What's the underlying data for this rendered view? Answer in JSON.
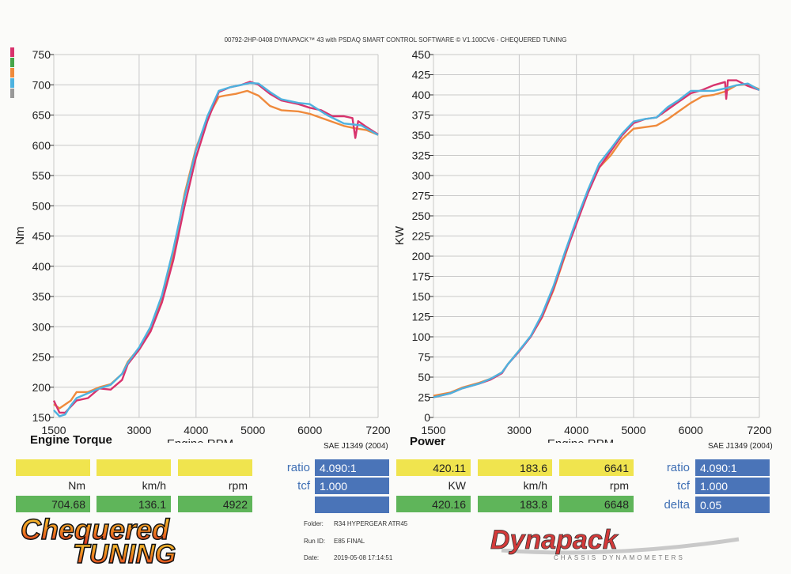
{
  "header": "00792-2HP-0408 DYNAPACK™ 43 with PSDAQ SMART CONTROL SOFTWARE © V1.100CV6 - CHEQUERED TUNING",
  "colors": {
    "pink": "#d8336d",
    "orange": "#ef8a3c",
    "blue": "#4eb2df",
    "green": "#46a54a",
    "grey": "#999999",
    "yellow_box": "#f0e44e",
    "green_box": "#5fb55a",
    "blue_box": "#4a74b8",
    "grid": "#c8c8c8"
  },
  "legend_swatches": [
    "#d8336d",
    "#46a54a",
    "#ef8a3c",
    "#4eb2df",
    "#999999"
  ],
  "chart_data": [
    {
      "type": "line",
      "title": "Engine Torque",
      "xlabel": "Engine RPM",
      "ylabel": "Nm",
      "standard": "SAE J1349 (2004)",
      "xlim": [
        1500,
        7200
      ],
      "ylim": [
        150,
        750
      ],
      "x_ticks": [
        1500,
        3000,
        4000,
        5000,
        6000,
        7200
      ],
      "y_ticks": [
        150,
        200,
        250,
        300,
        350,
        400,
        450,
        500,
        550,
        600,
        650,
        700,
        750
      ],
      "grid": true,
      "series": [
        {
          "color": "#ef8a3c",
          "points": [
            [
              1500,
              172
            ],
            [
              1600,
              165
            ],
            [
              1800,
              178
            ],
            [
              1900,
              192
            ],
            [
              2100,
              192
            ],
            [
              2300,
              200
            ],
            [
              2500,
              205
            ],
            [
              2700,
              222
            ],
            [
              2800,
              242
            ],
            [
              3000,
              265
            ],
            [
              3200,
              295
            ],
            [
              3400,
              345
            ],
            [
              3600,
              420
            ],
            [
              3800,
              520
            ],
            [
              4000,
              595
            ],
            [
              4200,
              645
            ],
            [
              4400,
              680
            ],
            [
              4500,
              682
            ],
            [
              4700,
              685
            ],
            [
              4900,
              690
            ],
            [
              5100,
              682
            ],
            [
              5300,
              665
            ],
            [
              5500,
              658
            ],
            [
              5800,
              656
            ],
            [
              6000,
              652
            ],
            [
              6300,
              642
            ],
            [
              6600,
              632
            ],
            [
              6800,
              628
            ],
            [
              7000,
              625
            ],
            [
              7200,
              617
            ]
          ]
        },
        {
          "color": "#d8336d",
          "points": [
            [
              1500,
              178
            ],
            [
              1600,
              158
            ],
            [
              1700,
              158
            ],
            [
              1800,
              168
            ],
            [
              1900,
              178
            ],
            [
              2100,
              182
            ],
            [
              2300,
              198
            ],
            [
              2500,
              196
            ],
            [
              2700,
              212
            ],
            [
              2800,
              238
            ],
            [
              3000,
              262
            ],
            [
              3200,
              292
            ],
            [
              3400,
              340
            ],
            [
              3600,
              410
            ],
            [
              3800,
              500
            ],
            [
              4000,
              580
            ],
            [
              4200,
              640
            ],
            [
              4400,
              688
            ],
            [
              4600,
              696
            ],
            [
              4800,
              700
            ],
            [
              4950,
              705
            ],
            [
              5100,
              700
            ],
            [
              5300,
              685
            ],
            [
              5500,
              674
            ],
            [
              5800,
              668
            ],
            [
              6000,
              662
            ],
            [
              6200,
              658
            ],
            [
              6400,
              648
            ],
            [
              6600,
              648
            ],
            [
              6750,
              645
            ],
            [
              6800,
              612
            ],
            [
              6850,
              640
            ],
            [
              7000,
              630
            ],
            [
              7200,
              618
            ]
          ]
        },
        {
          "color": "#4eb2df",
          "points": [
            [
              1500,
              162
            ],
            [
              1600,
              152
            ],
            [
              1700,
              155
            ],
            [
              1800,
              170
            ],
            [
              1900,
              182
            ],
            [
              2100,
              190
            ],
            [
              2300,
              198
            ],
            [
              2500,
              204
            ],
            [
              2700,
              222
            ],
            [
              2800,
              240
            ],
            [
              3000,
              266
            ],
            [
              3200,
              300
            ],
            [
              3400,
              352
            ],
            [
              3600,
              428
            ],
            [
              3800,
              515
            ],
            [
              4000,
              592
            ],
            [
              4200,
              648
            ],
            [
              4400,
              690
            ],
            [
              4600,
              696
            ],
            [
              4800,
              700
            ],
            [
              4950,
              703
            ],
            [
              5100,
              702
            ],
            [
              5300,
              688
            ],
            [
              5500,
              676
            ],
            [
              5800,
              670
            ],
            [
              6000,
              668
            ],
            [
              6300,
              650
            ],
            [
              6600,
              636
            ],
            [
              6900,
              633
            ],
            [
              7200,
              617
            ]
          ]
        }
      ]
    },
    {
      "type": "line",
      "title": "Power",
      "xlabel": "Engine RPM",
      "ylabel": "KW",
      "standard": "SAE J1349 (2004)",
      "xlim": [
        1500,
        7200
      ],
      "ylim": [
        0,
        450
      ],
      "x_ticks": [
        1500,
        3000,
        4000,
        5000,
        6000,
        7200
      ],
      "y_ticks": [
        0,
        25,
        50,
        75,
        100,
        125,
        150,
        175,
        200,
        225,
        250,
        275,
        300,
        325,
        350,
        375,
        400,
        425,
        450
      ],
      "grid": true,
      "series": [
        {
          "color": "#ef8a3c",
          "points": [
            [
              1500,
              27
            ],
            [
              1800,
              31
            ],
            [
              2000,
              37
            ],
            [
              2300,
              43
            ],
            [
              2500,
              48
            ],
            [
              2700,
              56
            ],
            [
              2800,
              66
            ],
            [
              3000,
              83
            ],
            [
              3200,
              100
            ],
            [
              3400,
              124
            ],
            [
              3600,
              158
            ],
            [
              3800,
              200
            ],
            [
              4000,
              243
            ],
            [
              4200,
              280
            ],
            [
              4400,
              310
            ],
            [
              4600,
              325
            ],
            [
              4800,
              345
            ],
            [
              5000,
              358
            ],
            [
              5200,
              360
            ],
            [
              5400,
              362
            ],
            [
              5600,
              370
            ],
            [
              5800,
              380
            ],
            [
              6000,
              390
            ],
            [
              6200,
              398
            ],
            [
              6400,
              400
            ],
            [
              6600,
              404
            ],
            [
              6800,
              412
            ],
            [
              7000,
              413
            ],
            [
              7200,
              407
            ]
          ]
        },
        {
          "color": "#d8336d",
          "points": [
            [
              1500,
              25
            ],
            [
              1800,
              30
            ],
            [
              2000,
              36
            ],
            [
              2300,
              42
            ],
            [
              2500,
              47
            ],
            [
              2700,
              55
            ],
            [
              2800,
              66
            ],
            [
              3000,
              82
            ],
            [
              3200,
              100
            ],
            [
              3400,
              125
            ],
            [
              3600,
              160
            ],
            [
              3800,
              202
            ],
            [
              4000,
              240
            ],
            [
              4200,
              278
            ],
            [
              4400,
              310
            ],
            [
              4600,
              330
            ],
            [
              4800,
              350
            ],
            [
              5000,
              365
            ],
            [
              5200,
              370
            ],
            [
              5400,
              372
            ],
            [
              5600,
              382
            ],
            [
              5800,
              392
            ],
            [
              6000,
              402
            ],
            [
              6200,
              406
            ],
            [
              6400,
              412
            ],
            [
              6600,
              416
            ],
            [
              6620,
              395
            ],
            [
              6650,
              418
            ],
            [
              6800,
              418
            ],
            [
              7000,
              411
            ],
            [
              7200,
              406
            ]
          ]
        },
        {
          "color": "#4eb2df",
          "points": [
            [
              1500,
              25
            ],
            [
              1800,
              30
            ],
            [
              2000,
              36
            ],
            [
              2300,
              42
            ],
            [
              2500,
              48
            ],
            [
              2700,
              56
            ],
            [
              2800,
              66
            ],
            [
              3000,
              83
            ],
            [
              3200,
              101
            ],
            [
              3400,
              128
            ],
            [
              3600,
              163
            ],
            [
              3800,
              205
            ],
            [
              4000,
              245
            ],
            [
              4200,
              282
            ],
            [
              4400,
              315
            ],
            [
              4600,
              333
            ],
            [
              4800,
              352
            ],
            [
              5000,
              367
            ],
            [
              5200,
              370
            ],
            [
              5400,
              372
            ],
            [
              5600,
              385
            ],
            [
              5800,
              394
            ],
            [
              6000,
              405
            ],
            [
              6200,
              405
            ],
            [
              6400,
              405
            ],
            [
              6600,
              408
            ],
            [
              6800,
              412
            ],
            [
              7000,
              414
            ],
            [
              7200,
              406
            ]
          ]
        }
      ]
    }
  ],
  "readouts": {
    "torque": {
      "yellow": [
        "",
        "",
        ""
      ],
      "units": [
        "Nm",
        "km/h",
        "rpm"
      ],
      "green": [
        "704.68",
        "136.1",
        "4922"
      ],
      "params": [
        {
          "label": "ratio",
          "value": "4.090:1"
        },
        {
          "label": "tcf",
          "value": "1.000"
        },
        {
          "label": "",
          "value": ""
        }
      ]
    },
    "power": {
      "yellow": [
        "420.11",
        "183.6",
        "6641"
      ],
      "units": [
        "KW",
        "km/h",
        "rpm"
      ],
      "green": [
        "420.16",
        "183.8",
        "6648"
      ],
      "params": [
        {
          "label": "ratio",
          "value": "4.090:1"
        },
        {
          "label": "tcf",
          "value": "1.000"
        },
        {
          "label": "delta",
          "value": "0.05"
        }
      ]
    }
  },
  "meta": {
    "folder_label": "Folder:",
    "folder": "R34 HYPERGEAR ATR45",
    "run_label": "Run ID:",
    "run": "E85 FINAL",
    "date_label": "Date:",
    "date": "2019-05-08 17:14:51"
  },
  "logos": {
    "chequered_line1": "Chequered",
    "chequered_line2": "TUNING",
    "dynapack": "Dynapack",
    "dynapack_sub": "CHASSIS DYNAMOMETERS"
  }
}
